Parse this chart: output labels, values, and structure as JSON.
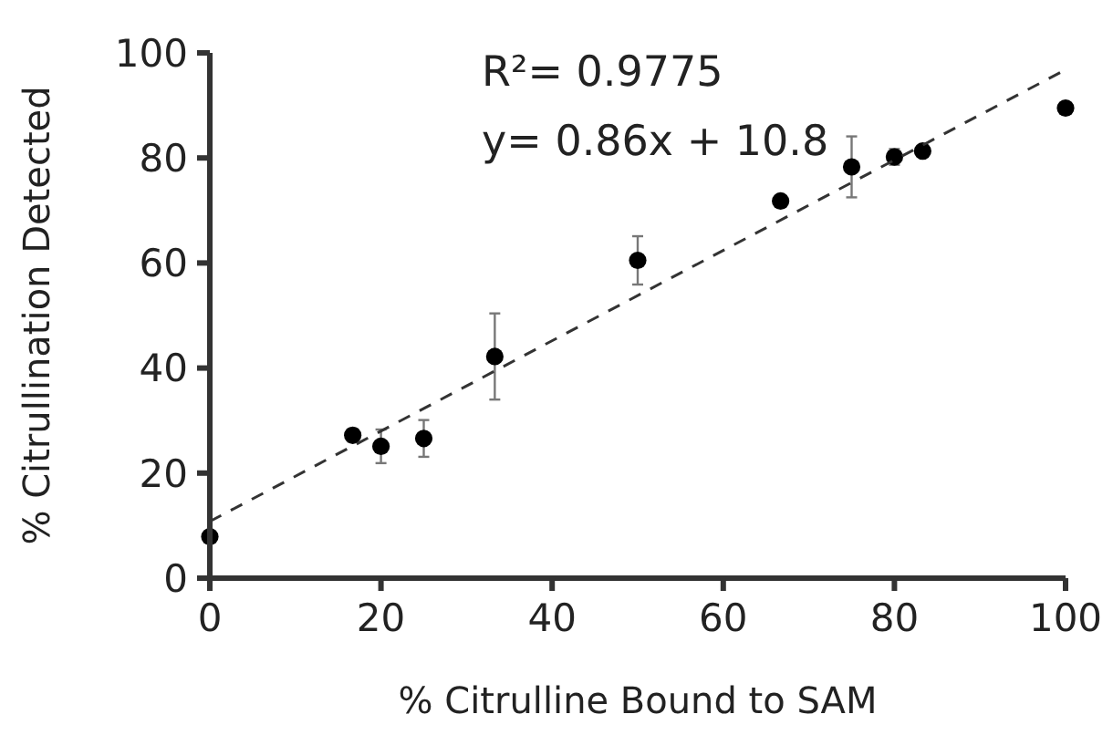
{
  "chart_data": {
    "type": "scatter",
    "xlabel": "% Citrulline Bound to SAM",
    "ylabel": "% Citrullination Detected",
    "xlim": [
      0,
      100
    ],
    "ylim": [
      0,
      100
    ],
    "xticks": [
      0,
      20,
      40,
      60,
      80,
      100
    ],
    "yticks": [
      0,
      20,
      40,
      60,
      80,
      100
    ],
    "grid": false,
    "marker": "circle",
    "annotations": [
      "R²= 0.9775",
      "y= 0.86x + 10.8"
    ],
    "series": [
      {
        "color": "#000000",
        "x": [
          0,
          16.7,
          20,
          25,
          33.3,
          50,
          66.7,
          75,
          80,
          83.3,
          100
        ],
        "values": [
          7.9,
          27.2,
          25.1,
          26.6,
          42.2,
          60.5,
          71.8,
          78.3,
          80.2,
          81.3,
          89.5
        ],
        "errors": [
          null,
          1.2,
          3.2,
          3.5,
          8.2,
          4.6,
          null,
          5.8,
          1.5,
          null,
          null
        ]
      },
      {
        "type": "line",
        "color": "#333333",
        "line_style": "dashed",
        "marker": "none",
        "x": [
          0,
          100
        ],
        "values": [
          10.8,
          96.8
        ]
      }
    ]
  }
}
